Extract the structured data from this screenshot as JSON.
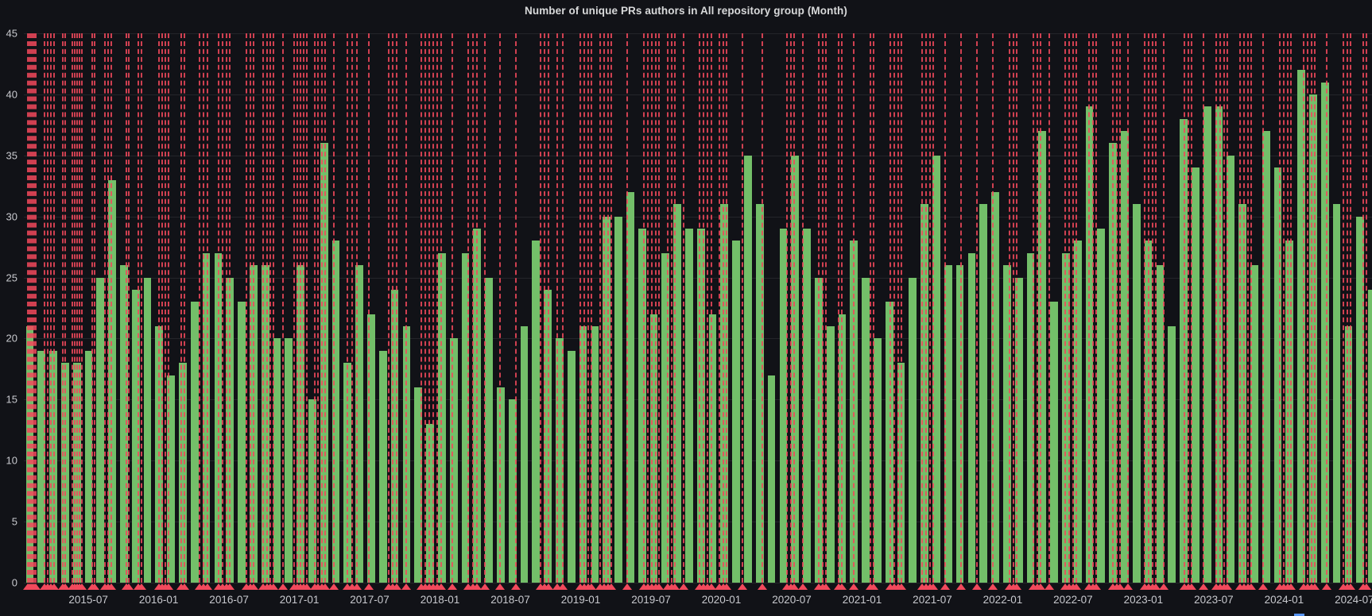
{
  "panel": {
    "title": "Number of unique PRs authors in All repository group (Month)"
  },
  "colors": {
    "background": "#111217",
    "bar_green": "#73BF69",
    "annotation_red": "#F2495C",
    "grid": "rgba(204,204,220,0.10)",
    "axis_text": "#C8C9CE",
    "title_text": "#D8D9DA",
    "legend_marker_blue": "#5794F2"
  },
  "chart_data": {
    "type": "bar",
    "title": "Number of unique PRs authors in All repository group (Month)",
    "xlabel": "",
    "ylabel": "",
    "ylim": [
      0,
      45
    ],
    "yticks": [
      45,
      40,
      35,
      30,
      25,
      20,
      15,
      10,
      5,
      0
    ],
    "grid": true,
    "legend_position": "bottom (cut off at panel edge)",
    "categories": [
      "2015-02",
      "2015-03",
      "2015-04",
      "2015-05",
      "2015-06",
      "2015-07",
      "2015-08",
      "2015-09",
      "2015-10",
      "2015-11",
      "2015-12",
      "2016-01",
      "2016-02",
      "2016-03",
      "2016-04",
      "2016-05",
      "2016-06",
      "2016-07",
      "2016-08",
      "2016-09",
      "2016-10",
      "2016-11",
      "2016-12",
      "2017-01",
      "2017-02",
      "2017-03",
      "2017-04",
      "2017-05",
      "2017-06",
      "2017-07",
      "2017-08",
      "2017-09",
      "2017-10",
      "2017-11",
      "2017-12",
      "2018-01",
      "2018-02",
      "2018-03",
      "2018-04",
      "2018-05",
      "2018-06",
      "2018-07",
      "2018-08",
      "2018-09",
      "2018-10",
      "2018-11",
      "2018-12",
      "2019-01",
      "2019-02",
      "2019-03",
      "2019-04",
      "2019-05",
      "2019-06",
      "2019-07",
      "2019-08",
      "2019-09",
      "2019-10",
      "2019-11",
      "2019-12",
      "2020-01",
      "2020-02",
      "2020-03",
      "2020-04",
      "2020-05",
      "2020-06",
      "2020-07",
      "2020-08",
      "2020-09",
      "2020-10",
      "2020-11",
      "2020-12",
      "2021-01",
      "2021-02",
      "2021-03",
      "2021-04",
      "2021-05",
      "2021-06",
      "2021-07",
      "2021-08",
      "2021-09",
      "2021-10",
      "2021-11",
      "2021-12",
      "2022-01",
      "2022-02",
      "2022-03",
      "2022-04",
      "2022-05",
      "2022-06",
      "2022-07",
      "2022-08",
      "2022-09",
      "2022-10",
      "2022-11",
      "2022-12",
      "2023-01",
      "2023-02",
      "2023-03",
      "2023-04",
      "2023-05",
      "2023-06",
      "2023-07",
      "2023-08",
      "2023-09",
      "2023-10",
      "2023-11",
      "2023-12",
      "2024-01",
      "2024-02",
      "2024-03",
      "2024-04",
      "2024-05",
      "2024-06",
      "2024-07",
      "2024-08"
    ],
    "values": [
      21,
      19,
      19,
      18,
      18,
      19,
      25,
      33,
      26,
      24,
      25,
      21,
      17,
      18,
      23,
      27,
      27,
      25,
      23,
      26,
      26,
      20,
      20,
      26,
      15,
      36,
      28,
      18,
      26,
      22,
      19,
      24,
      21,
      16,
      13,
      27,
      20,
      27,
      29,
      25,
      16,
      15,
      21,
      28,
      24,
      20,
      19,
      21,
      21,
      30,
      30,
      32,
      29,
      22,
      27,
      31,
      29,
      29,
      22,
      31,
      28,
      35,
      31,
      17,
      29,
      35,
      29,
      25,
      21,
      22,
      28,
      25,
      20,
      23,
      18,
      25,
      31,
      35,
      26,
      26,
      27,
      31,
      32,
      26,
      25,
      27,
      37,
      23,
      27,
      28,
      39,
      29,
      36,
      37,
      31,
      28,
      26,
      21,
      38,
      34,
      39,
      39,
      35,
      31,
      26,
      37,
      34,
      28,
      42,
      40,
      41,
      31,
      21,
      30,
      24
    ],
    "x_tick_labels": [
      "2015-07",
      "2016-01",
      "2016-07",
      "2017-01",
      "2017-07",
      "2018-01",
      "2018-07",
      "2019-01",
      "2019-07",
      "2020-01",
      "2020-07",
      "2021-01",
      "2021-07",
      "2022-01",
      "2022-07",
      "2023-01",
      "2023-07",
      "2024-01",
      "2024-07"
    ],
    "x_tick_month_indices": [
      5,
      11,
      17,
      23,
      29,
      35,
      41,
      47,
      53,
      59,
      65,
      71,
      77,
      83,
      89,
      95,
      101,
      107,
      113
    ],
    "annotations_pct": [
      0.29,
      0.41,
      0.53,
      0.65,
      0.77,
      0.88,
      1.53,
      1.77,
      2.0,
      2.24,
      2.89,
      3.07,
      3.6,
      3.77,
      3.95,
      4.13,
      4.3,
      5.07,
      5.25,
      6.01,
      6.25,
      6.49,
      7.61,
      7.78,
      8.49,
      8.73,
      10.02,
      10.26,
      10.5,
      10.73,
      11.67,
      11.91,
      13.03,
      13.33,
      13.62,
      14.45,
      14.74,
      15.04,
      15.27,
      16.51,
      16.8,
      17.04,
      17.75,
      18.04,
      18.28,
      18.51,
      19.22,
      20.05,
      20.28,
      20.52,
      20.75,
      20.99,
      21.58,
      21.82,
      22.11,
      22.35,
      23.0,
      24.0,
      24.35,
      24.7,
      25.59,
      27.06,
      27.36,
      27.65,
      28.36,
      29.48,
      29.78,
      30.07,
      30.37,
      30.66,
      30.96,
      31.78,
      32.96,
      33.31,
      33.61,
      34.2,
      35.32,
      36.5,
      38.33,
      38.62,
      38.92,
      39.56,
      39.98,
      41.27,
      41.57,
      41.86,
      42.1,
      42.75,
      43.04,
      43.34,
      43.57,
      44.75,
      45.99,
      46.29,
      46.58,
      46.88,
      47.11,
      47.76,
      48.05,
      48.29,
      48.94,
      50.12,
      50.41,
      50.71,
      51.0,
      51.59,
      51.89,
      52.12,
      53.3,
      54.78,
      56.6,
      56.9,
      57.13,
      57.78,
      58.96,
      59.26,
      59.49,
      60.44,
      60.67,
      61.56,
      62.79,
      63.03,
      64.27,
      64.56,
      64.86,
      65.09,
      66.63,
      66.92,
      67.22,
      67.45,
      68.34,
      69.52,
      70.7,
      71.87,
      73.11,
      73.41,
      73.64,
      74.88,
      75.18,
      75.41,
      76.06,
      77.24,
      77.54,
      77.83,
      78.07,
      79.01,
      79.3,
      79.54,
      80.78,
      81.07,
      81.31,
      81.9,
      83.14,
      83.43,
      83.73,
      83.96,
      84.55,
      86.08,
      86.38,
      86.61,
      87.5,
      88.44,
      88.74,
      89.03,
      89.27,
      90.21,
      90.51,
      90.8,
      91.04,
      91.92,
      93.16,
      93.46,
      93.75,
      93.99,
      94.93,
      95.22,
      95.52,
      95.75,
      96.64,
      97.88,
      98.17,
      98.41,
      99.35,
      99.59
    ]
  }
}
